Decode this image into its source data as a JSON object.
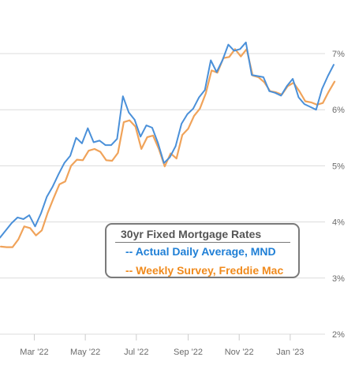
{
  "chart_data": {
    "type": "line",
    "title": "30yr Fixed Mortgage Rates",
    "y_tick_labels": [
      "2%",
      "3%",
      "4%",
      "5%",
      "6%",
      "7%"
    ],
    "x_tick_labels": [
      "Mar '22",
      "May '22",
      "Jul '22",
      "Sep '22",
      "Nov '22",
      "Jan '23"
    ],
    "ylim": [
      1.9,
      7.4
    ],
    "y_axis_position": "right",
    "grid": "horizontal",
    "legend_placement": "bottom-center",
    "series": [
      {
        "name": "-- Actual Daily Average, MND",
        "color": "#4a90d9",
        "points": [
          [
            "2022-01-19",
            3.72
          ],
          [
            "2022-01-26",
            3.85
          ],
          [
            "2022-02-02",
            3.98
          ],
          [
            "2022-02-09",
            4.08
          ],
          [
            "2022-02-16",
            4.05
          ],
          [
            "2022-02-23",
            4.12
          ],
          [
            "2022-03-02",
            3.92
          ],
          [
            "2022-03-09",
            4.15
          ],
          [
            "2022-03-16",
            4.45
          ],
          [
            "2022-03-23",
            4.63
          ],
          [
            "2022-03-30",
            4.85
          ],
          [
            "2022-04-06",
            5.05
          ],
          [
            "2022-04-13",
            5.18
          ],
          [
            "2022-04-20",
            5.5
          ],
          [
            "2022-04-27",
            5.4
          ],
          [
            "2022-05-04",
            5.67
          ],
          [
            "2022-05-11",
            5.42
          ],
          [
            "2022-05-18",
            5.45
          ],
          [
            "2022-05-25",
            5.37
          ],
          [
            "2022-06-01",
            5.37
          ],
          [
            "2022-06-08",
            5.48
          ],
          [
            "2022-06-15",
            6.24
          ],
          [
            "2022-06-22",
            5.95
          ],
          [
            "2022-06-29",
            5.82
          ],
          [
            "2022-07-06",
            5.52
          ],
          [
            "2022-07-13",
            5.72
          ],
          [
            "2022-07-20",
            5.68
          ],
          [
            "2022-07-27",
            5.4
          ],
          [
            "2022-08-03",
            5.05
          ],
          [
            "2022-08-10",
            5.15
          ],
          [
            "2022-08-17",
            5.35
          ],
          [
            "2022-08-24",
            5.75
          ],
          [
            "2022-08-31",
            5.92
          ],
          [
            "2022-09-07",
            6.02
          ],
          [
            "2022-09-14",
            6.22
          ],
          [
            "2022-09-21",
            6.35
          ],
          [
            "2022-09-28",
            6.88
          ],
          [
            "2022-10-05",
            6.67
          ],
          [
            "2022-10-12",
            6.88
          ],
          [
            "2022-10-19",
            7.16
          ],
          [
            "2022-10-26",
            7.05
          ],
          [
            "2022-11-02",
            7.08
          ],
          [
            "2022-11-09",
            7.2
          ],
          [
            "2022-11-16",
            6.62
          ],
          [
            "2022-11-23",
            6.6
          ],
          [
            "2022-11-30",
            6.58
          ],
          [
            "2022-12-07",
            6.33
          ],
          [
            "2022-12-14",
            6.3
          ],
          [
            "2022-12-21",
            6.25
          ],
          [
            "2022-12-28",
            6.42
          ],
          [
            "2023-01-04",
            6.55
          ],
          [
            "2023-01-11",
            6.22
          ],
          [
            "2023-01-18",
            6.1
          ],
          [
            "2023-01-25",
            6.05
          ],
          [
            "2023-02-01",
            6.0
          ],
          [
            "2023-02-08",
            6.37
          ],
          [
            "2023-02-15",
            6.6
          ],
          [
            "2023-02-22",
            6.8
          ]
        ]
      },
      {
        "name": "-- Weekly Survey, Freddie Mac",
        "color": "#f0a35a",
        "points": [
          [
            "2022-01-20",
            3.56
          ],
          [
            "2022-01-27",
            3.55
          ],
          [
            "2022-02-03",
            3.55
          ],
          [
            "2022-02-10",
            3.69
          ],
          [
            "2022-02-17",
            3.92
          ],
          [
            "2022-02-24",
            3.89
          ],
          [
            "2022-03-03",
            3.76
          ],
          [
            "2022-03-10",
            3.85
          ],
          [
            "2022-03-17",
            4.16
          ],
          [
            "2022-03-24",
            4.42
          ],
          [
            "2022-03-31",
            4.67
          ],
          [
            "2022-04-07",
            4.72
          ],
          [
            "2022-04-14",
            5.0
          ],
          [
            "2022-04-21",
            5.11
          ],
          [
            "2022-04-28",
            5.1
          ],
          [
            "2022-05-05",
            5.27
          ],
          [
            "2022-05-12",
            5.3
          ],
          [
            "2022-05-19",
            5.25
          ],
          [
            "2022-05-26",
            5.1
          ],
          [
            "2022-06-02",
            5.09
          ],
          [
            "2022-06-09",
            5.23
          ],
          [
            "2022-06-16",
            5.78
          ],
          [
            "2022-06-23",
            5.81
          ],
          [
            "2022-06-30",
            5.7
          ],
          [
            "2022-07-07",
            5.3
          ],
          [
            "2022-07-14",
            5.51
          ],
          [
            "2022-07-21",
            5.54
          ],
          [
            "2022-07-28",
            5.3
          ],
          [
            "2022-08-04",
            4.99
          ],
          [
            "2022-08-11",
            5.22
          ],
          [
            "2022-08-18",
            5.13
          ],
          [
            "2022-08-25",
            5.55
          ],
          [
            "2022-09-01",
            5.66
          ],
          [
            "2022-09-08",
            5.89
          ],
          [
            "2022-09-15",
            6.02
          ],
          [
            "2022-09-22",
            6.29
          ],
          [
            "2022-09-29",
            6.7
          ],
          [
            "2022-10-06",
            6.66
          ],
          [
            "2022-10-13",
            6.92
          ],
          [
            "2022-10-20",
            6.94
          ],
          [
            "2022-10-27",
            7.08
          ],
          [
            "2022-11-03",
            6.95
          ],
          [
            "2022-11-10",
            7.08
          ],
          [
            "2022-11-17",
            6.61
          ],
          [
            "2022-11-24",
            6.58
          ],
          [
            "2022-12-01",
            6.49
          ],
          [
            "2022-12-08",
            6.33
          ],
          [
            "2022-12-15",
            6.31
          ],
          [
            "2022-12-22",
            6.27
          ],
          [
            "2022-12-29",
            6.42
          ],
          [
            "2023-01-05",
            6.48
          ],
          [
            "2023-01-12",
            6.33
          ],
          [
            "2023-01-19",
            6.15
          ],
          [
            "2023-01-26",
            6.13
          ],
          [
            "2023-02-02",
            6.09
          ],
          [
            "2023-02-09",
            6.12
          ],
          [
            "2023-02-16",
            6.32
          ],
          [
            "2023-02-23",
            6.5
          ]
        ]
      }
    ]
  }
}
